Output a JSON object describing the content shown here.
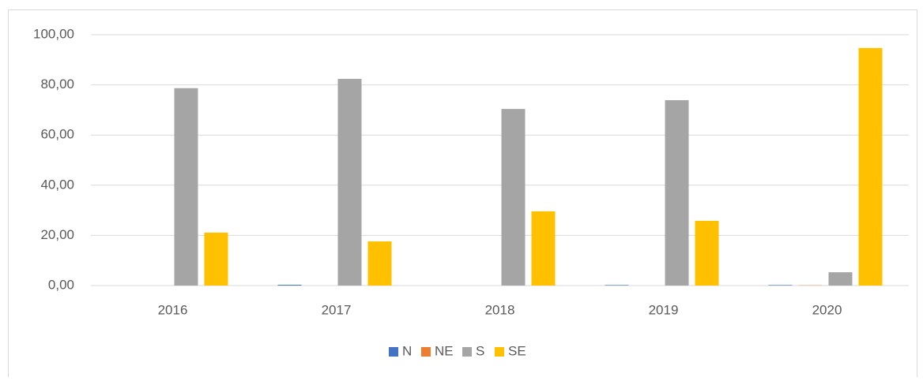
{
  "chart_data": {
    "type": "bar",
    "categories": [
      "2016",
      "2017",
      "2018",
      "2019",
      "2020"
    ],
    "series": [
      {
        "name": "N",
        "color": "#4472c4",
        "values": [
          0,
          0.3,
          0,
          0.2,
          0.2
        ]
      },
      {
        "name": "NE",
        "color": "#ed7d31",
        "values": [
          0,
          0,
          0,
          0,
          0.1
        ]
      },
      {
        "name": "S",
        "color": "#a5a5a5",
        "values": [
          78.7,
          82.4,
          70.4,
          73.9,
          5.3
        ]
      },
      {
        "name": "SE",
        "color": "#ffc000",
        "values": [
          21.1,
          17.6,
          29.6,
          25.8,
          94.7
        ]
      }
    ],
    "ylim": [
      0,
      100
    ],
    "yticks": [
      {
        "value": 0,
        "label": "0,00"
      },
      {
        "value": 20,
        "label": "20,00"
      },
      {
        "value": 40,
        "label": "40,00"
      },
      {
        "value": 60,
        "label": "60,00"
      },
      {
        "value": 80,
        "label": "80,00"
      },
      {
        "value": 100,
        "label": "100,00"
      }
    ],
    "grid": true,
    "legend": "bottom"
  }
}
